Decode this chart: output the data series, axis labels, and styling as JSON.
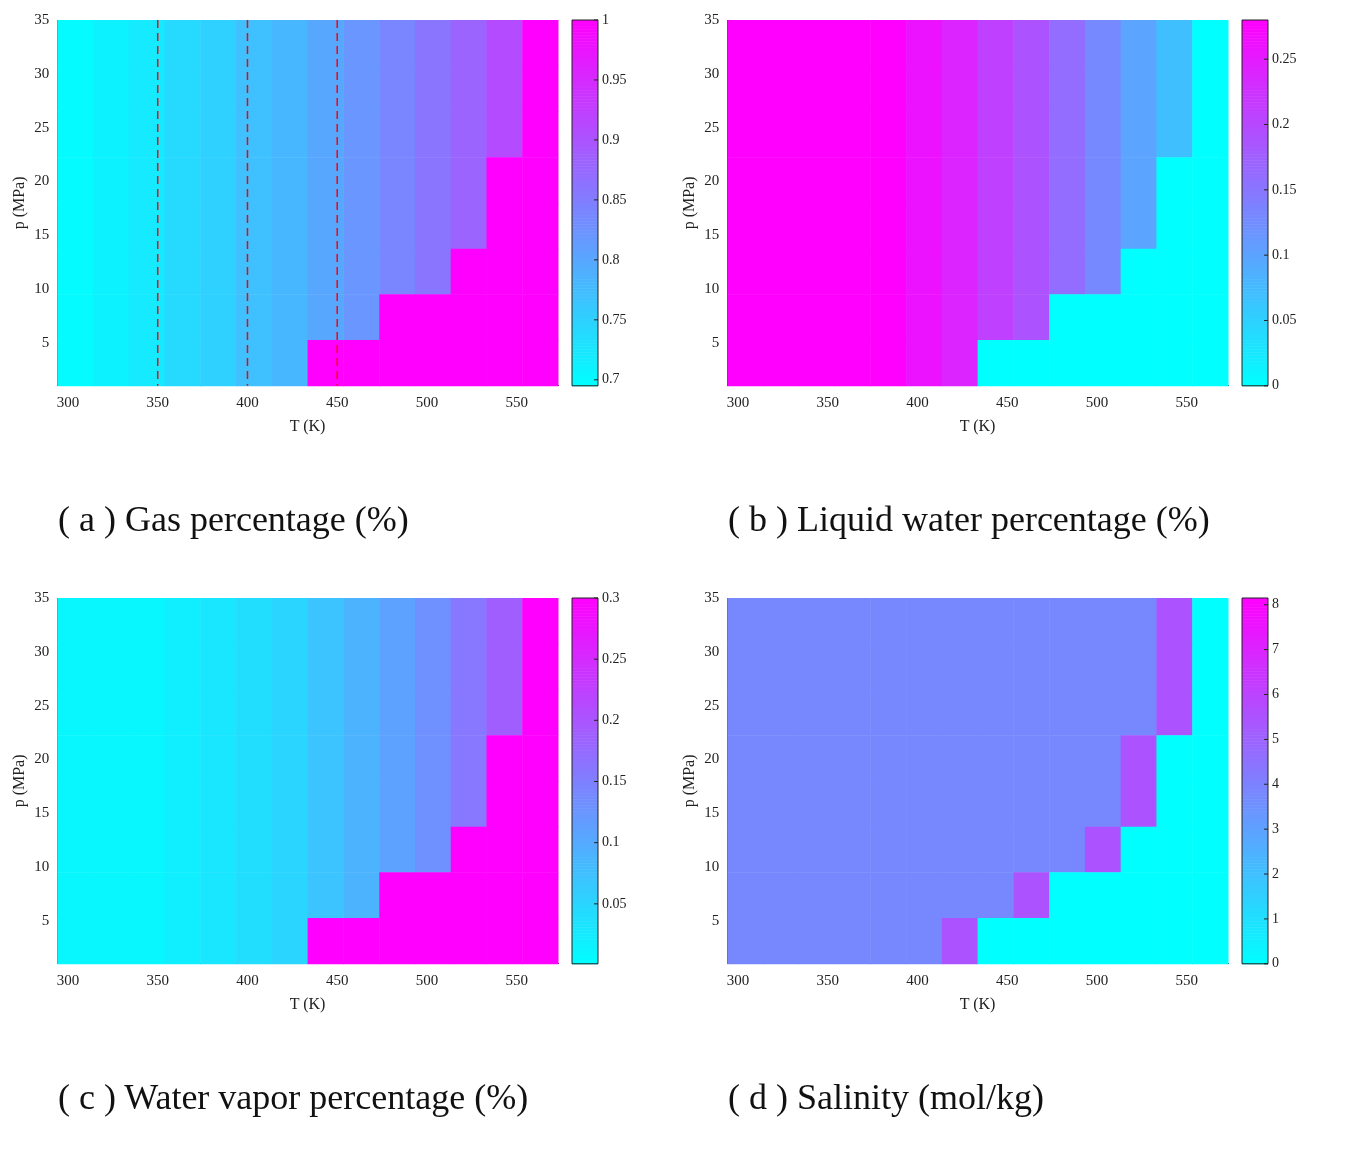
{
  "chart_data": [
    {
      "type": "heatmap",
      "title": "( a ) Gas percentage (%)",
      "xlabel": "T (K)",
      "ylabel": "p (MPa)",
      "xlim": [
        294,
        573
      ],
      "xticks": [
        300,
        350,
        400,
        450,
        500,
        550
      ],
      "ylim": [
        1,
        35
      ],
      "yticks": [
        5,
        10,
        15,
        20,
        25,
        30,
        35
      ],
      "clim": [
        0.695,
        1
      ],
      "cticks": [
        0.7,
        0.75,
        0.8,
        0.85,
        0.9,
        0.95,
        1
      ],
      "ref_lines": [
        {
          "axis": "x",
          "value": 350,
          "color": "#ff0000",
          "line_style": "dashed"
        },
        {
          "axis": "x",
          "value": 400,
          "color": "#ff0000",
          "line_style": "dashed"
        },
        {
          "axis": "x",
          "value": 450,
          "color": "#ff0000",
          "line_style": "dashed"
        }
      ],
      "cells": [
        [
          0.7,
          0.71,
          0.72,
          0.74,
          0.75,
          0.77,
          0.78,
          0.8,
          0.82,
          0.84,
          0.86,
          0.88,
          0.91,
          1
        ],
        [
          0.7,
          0.71,
          0.72,
          0.74,
          0.75,
          0.77,
          0.78,
          0.8,
          0.82,
          0.84,
          0.86,
          0.88,
          0.91,
          1
        ],
        [
          0.7,
          0.71,
          0.72,
          0.74,
          0.75,
          0.77,
          0.78,
          0.8,
          0.82,
          0.84,
          0.86,
          0.88,
          0.91,
          1
        ],
        [
          0.7,
          0.71,
          0.72,
          0.74,
          0.75,
          0.77,
          0.78,
          0.8,
          0.82,
          0.84,
          0.86,
          0.88,
          1,
          1
        ],
        [
          0.7,
          0.71,
          0.72,
          0.74,
          0.75,
          0.77,
          0.78,
          0.8,
          0.82,
          0.84,
          0.86,
          0.88,
          1,
          1
        ],
        [
          0.7,
          0.71,
          0.72,
          0.74,
          0.75,
          0.77,
          0.78,
          0.8,
          0.82,
          0.84,
          0.86,
          1,
          1,
          1
        ],
        [
          0.7,
          0.71,
          0.72,
          0.74,
          0.75,
          0.77,
          0.78,
          0.8,
          0.82,
          1,
          1,
          1,
          1,
          1
        ],
        [
          0.7,
          0.71,
          0.72,
          0.74,
          0.75,
          0.77,
          0.78,
          1,
          1,
          1,
          1,
          1,
          1,
          1
        ]
      ]
    },
    {
      "type": "heatmap",
      "title": "( b ) Liquid water percentage (%)",
      "xlabel": "T (K)",
      "ylabel": "p (MPa)",
      "xlim": [
        294,
        573
      ],
      "xticks": [
        300,
        350,
        400,
        450,
        500,
        550
      ],
      "ylim": [
        1,
        35
      ],
      "yticks": [
        5,
        10,
        15,
        20,
        25,
        30,
        35
      ],
      "clim": [
        0,
        0.28
      ],
      "cticks": [
        0,
        0.05,
        0.1,
        0.15,
        0.2,
        0.25
      ],
      "cells": [
        [
          0.28,
          0.28,
          0.28,
          0.28,
          0.28,
          0.26,
          0.24,
          0.21,
          0.19,
          0.16,
          0.13,
          0.1,
          0.07,
          0
        ],
        [
          0.28,
          0.28,
          0.28,
          0.28,
          0.28,
          0.26,
          0.24,
          0.21,
          0.19,
          0.16,
          0.13,
          0.1,
          0.07,
          0
        ],
        [
          0.28,
          0.28,
          0.28,
          0.28,
          0.28,
          0.26,
          0.24,
          0.21,
          0.19,
          0.16,
          0.13,
          0.1,
          0.07,
          0
        ],
        [
          0.28,
          0.28,
          0.28,
          0.28,
          0.28,
          0.26,
          0.24,
          0.21,
          0.19,
          0.16,
          0.13,
          0.1,
          0,
          0
        ],
        [
          0.28,
          0.28,
          0.28,
          0.28,
          0.28,
          0.26,
          0.24,
          0.21,
          0.19,
          0.16,
          0.13,
          0.1,
          0,
          0
        ],
        [
          0.28,
          0.28,
          0.28,
          0.28,
          0.28,
          0.26,
          0.24,
          0.21,
          0.19,
          0.16,
          0.13,
          0,
          0,
          0
        ],
        [
          0.28,
          0.28,
          0.28,
          0.28,
          0.28,
          0.26,
          0.24,
          0.21,
          0.19,
          0,
          0,
          0,
          0,
          0
        ],
        [
          0.28,
          0.28,
          0.28,
          0.28,
          0.28,
          0.26,
          0.24,
          0,
          0,
          0,
          0,
          0,
          0,
          0
        ]
      ]
    },
    {
      "type": "heatmap",
      "title": "( c ) Water vapor percentage (%)",
      "xlabel": "T (K)",
      "ylabel": "p (MPa)",
      "xlim": [
        294,
        573
      ],
      "xticks": [
        300,
        350,
        400,
        450,
        500,
        550
      ],
      "ylim": [
        1,
        35
      ],
      "yticks": [
        5,
        10,
        15,
        20,
        25,
        30,
        35
      ],
      "clim": [
        0.001,
        0.3
      ],
      "cticks": [
        0.05,
        0.1,
        0.15,
        0.2,
        0.25,
        0.3
      ],
      "cells": [
        [
          0.01,
          0.01,
          0.01,
          0.02,
          0.03,
          0.04,
          0.05,
          0.07,
          0.09,
          0.11,
          0.13,
          0.16,
          0.19,
          0.3
        ],
        [
          0.01,
          0.01,
          0.01,
          0.02,
          0.03,
          0.04,
          0.05,
          0.07,
          0.09,
          0.11,
          0.13,
          0.16,
          0.19,
          0.3
        ],
        [
          0.01,
          0.01,
          0.01,
          0.02,
          0.03,
          0.04,
          0.05,
          0.07,
          0.09,
          0.11,
          0.13,
          0.16,
          0.19,
          0.3
        ],
        [
          0.01,
          0.01,
          0.01,
          0.02,
          0.03,
          0.04,
          0.05,
          0.07,
          0.09,
          0.11,
          0.13,
          0.16,
          0.3,
          0.3
        ],
        [
          0.01,
          0.01,
          0.01,
          0.02,
          0.03,
          0.04,
          0.05,
          0.07,
          0.09,
          0.11,
          0.13,
          0.16,
          0.3,
          0.3
        ],
        [
          0.01,
          0.01,
          0.01,
          0.02,
          0.03,
          0.04,
          0.05,
          0.07,
          0.09,
          0.11,
          0.13,
          0.3,
          0.3,
          0.3
        ],
        [
          0.01,
          0.01,
          0.01,
          0.02,
          0.03,
          0.04,
          0.05,
          0.07,
          0.09,
          0.3,
          0.3,
          0.3,
          0.3,
          0.3
        ],
        [
          0.01,
          0.01,
          0.01,
          0.02,
          0.03,
          0.04,
          0.05,
          0.3,
          0.3,
          0.3,
          0.3,
          0.3,
          0.3,
          0.3
        ]
      ]
    },
    {
      "type": "heatmap",
      "title": "( d ) Salinity (mol/kg)",
      "xlabel": "T (K)",
      "ylabel": "p (MPa)",
      "xlim": [
        294,
        573
      ],
      "xticks": [
        300,
        350,
        400,
        450,
        500,
        550
      ],
      "ylim": [
        1,
        35
      ],
      "yticks": [
        5,
        10,
        15,
        20,
        25,
        30,
        35
      ],
      "clim": [
        0,
        8.15
      ],
      "cticks": [
        0,
        1,
        2,
        3,
        4,
        5,
        6,
        7,
        8
      ],
      "cells": [
        [
          3.8,
          3.8,
          3.8,
          3.8,
          3.8,
          3.8,
          3.8,
          3.8,
          3.8,
          3.8,
          3.8,
          3.8,
          5.5,
          0
        ],
        [
          3.8,
          3.8,
          3.8,
          3.8,
          3.8,
          3.8,
          3.8,
          3.8,
          3.8,
          3.8,
          3.8,
          3.8,
          5.5,
          0
        ],
        [
          3.8,
          3.8,
          3.8,
          3.8,
          3.8,
          3.8,
          3.8,
          3.8,
          3.8,
          3.8,
          3.8,
          3.8,
          5.5,
          0
        ],
        [
          3.8,
          3.8,
          3.8,
          3.8,
          3.8,
          3.8,
          3.8,
          3.8,
          3.8,
          3.8,
          3.8,
          5.5,
          0,
          0
        ],
        [
          3.8,
          3.8,
          3.8,
          3.8,
          3.8,
          3.8,
          3.8,
          3.8,
          3.8,
          3.8,
          3.8,
          5.5,
          0,
          0
        ],
        [
          3.8,
          3.8,
          3.8,
          3.8,
          3.8,
          3.8,
          3.8,
          3.8,
          3.8,
          3.8,
          5.5,
          0,
          0,
          0
        ],
        [
          3.8,
          3.8,
          3.8,
          3.8,
          3.8,
          3.8,
          3.8,
          3.8,
          5.5,
          0,
          0,
          0,
          0,
          0
        ],
        [
          3.8,
          3.8,
          3.8,
          3.8,
          3.8,
          3.8,
          5.5,
          0,
          0,
          0,
          0,
          0,
          0,
          0
        ]
      ]
    }
  ]
}
